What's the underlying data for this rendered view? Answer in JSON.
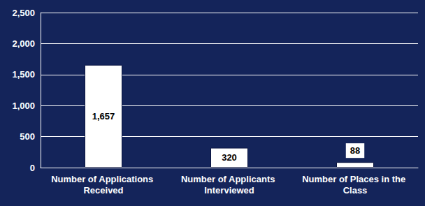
{
  "chart_data": {
    "type": "bar",
    "categories": [
      "Number of Applications Received",
      "Number of Applicants Interviewed",
      "Number of Places in the Class"
    ],
    "values": [
      1657,
      320,
      88
    ],
    "value_labels": [
      "1,657",
      "320",
      "88"
    ],
    "color": "#ffffff",
    "ylim": [
      0,
      2500
    ],
    "yticks": [
      0,
      500,
      {
        "value": 1000,
        "label": "1,000"
      },
      {
        "value": 1500,
        "label": "1,500"
      },
      {
        "value": 2000,
        "label": "2,000"
      },
      {
        "value": 2500,
        "label": "2,500"
      }
    ],
    "grid": true,
    "data_labels": true
  }
}
